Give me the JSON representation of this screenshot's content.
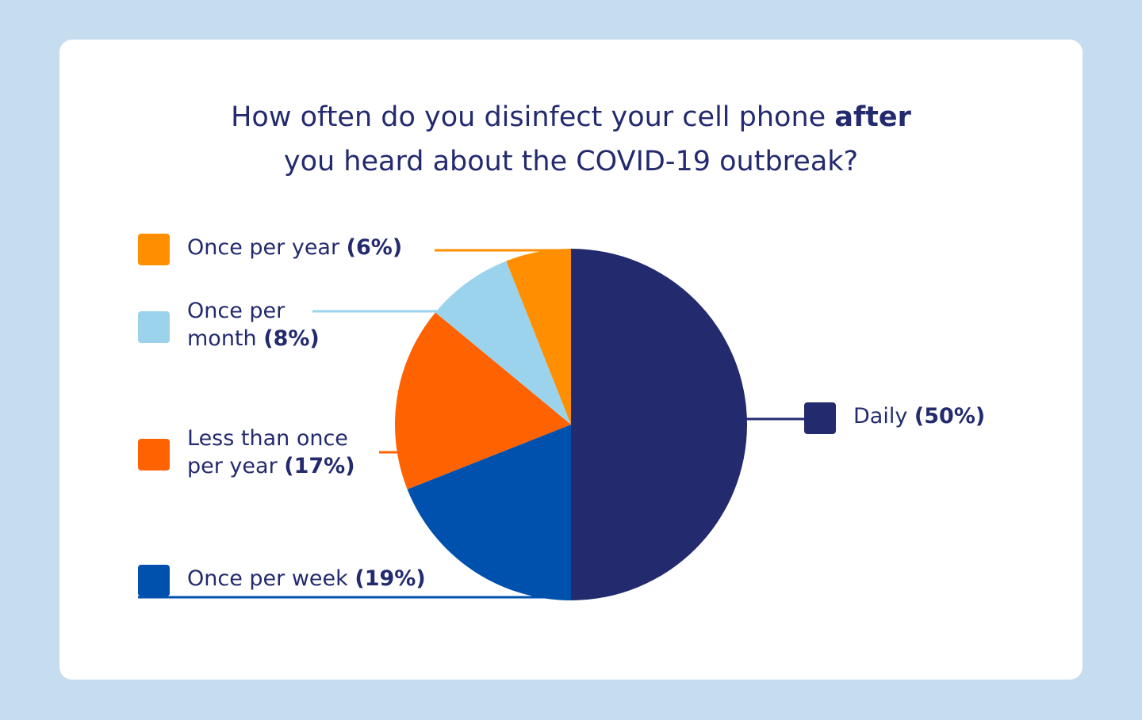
{
  "title": {
    "part1": "How often do you disinfect your cell phone",
    "emphasis": "after",
    "line2": "you heard about the COVID-19 outbreak?"
  },
  "colors": {
    "background": "#c6dcef",
    "card": "#ffffff",
    "text": "#232a6e"
  },
  "chart_data": {
    "type": "pie",
    "title": "How often do you disinfect your cell phone after you heard about the COVID-19 outbreak?",
    "unit": "%",
    "slices": [
      {
        "label": "Daily",
        "value": 50,
        "value_label": "(50%)",
        "color": "#232a6e"
      },
      {
        "label": "Once per week",
        "value": 19,
        "value_label": "(19%)",
        "color": "#0051ad"
      },
      {
        "label": "Less than once per year",
        "value": 17,
        "value_label": "(17%)",
        "color": "#ff6200"
      },
      {
        "label": "Once per month",
        "value": 8,
        "value_label": "(8%)",
        "color": "#9bd3ec"
      },
      {
        "label": "Once per year",
        "value": 6,
        "value_label": "(6%)",
        "color": "#ff8f00"
      }
    ],
    "start": "12 o'clock",
    "direction": "clockwise",
    "legend": "callouts with leader lines"
  },
  "legend": {
    "daily": {
      "text": "Daily",
      "pct": "(50%)"
    },
    "once_per_week": {
      "text": "Once per week",
      "pct": "(19%)"
    },
    "less_than_once_per_year": {
      "line1": "Less than once",
      "line2": "per year",
      "pct": "(17%)"
    },
    "once_per_month": {
      "line1": "Once per",
      "line2": "month",
      "pct": "(8%)"
    },
    "once_per_year": {
      "text": "Once per year",
      "pct": "(6%)"
    }
  }
}
